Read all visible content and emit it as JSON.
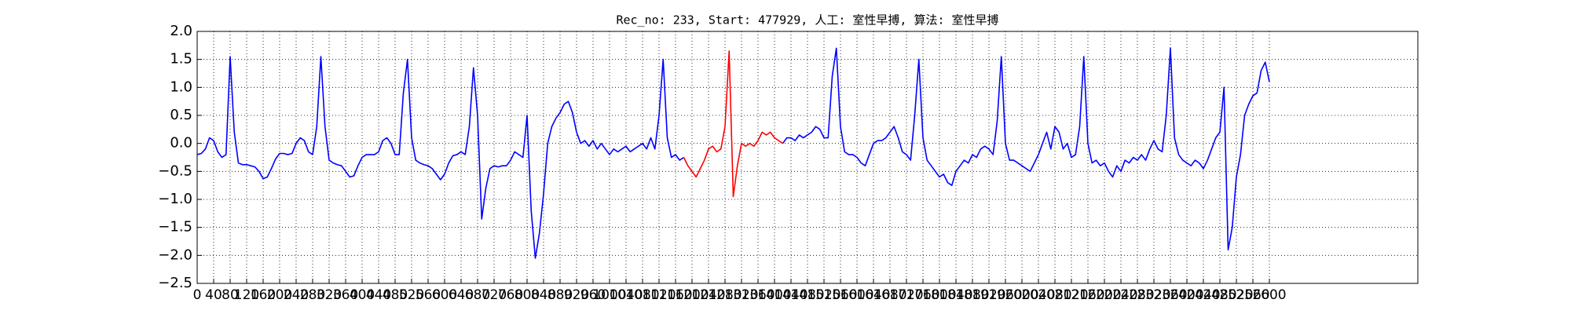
{
  "chart_data": {
    "type": "line",
    "title": "Rec_no: 233, Start: 477929, 人工: 室性早搏, 算法: 室性早搏",
    "xlim": [
      0,
      2960
    ],
    "ylim": [
      -2.5,
      2.0
    ],
    "xticks": [
      0,
      40,
      80,
      120,
      160,
      200,
      240,
      280,
      320,
      360,
      400,
      440,
      480,
      520,
      560,
      600,
      640,
      680,
      720,
      760,
      800,
      840,
      880,
      920,
      960,
      1000,
      1040,
      1080,
      1120,
      1160,
      1200,
      1240,
      1280,
      1320,
      1360,
      1400,
      1440,
      1480,
      1520,
      1560,
      1600,
      1640,
      1680,
      1720,
      1760,
      1800,
      1840,
      1880,
      1920,
      1960,
      2000,
      2040,
      2080,
      2120,
      2160,
      2200,
      2240,
      2280,
      2320,
      2360,
      2400,
      2440,
      2480,
      2520,
      2560,
      2600
    ],
    "yticks": [
      {
        "value": -2.5,
        "label": "−2.5"
      },
      {
        "value": -2.0,
        "label": "−2.0"
      },
      {
        "value": -1.5,
        "label": "−1.5"
      },
      {
        "value": -1.0,
        "label": "−1.0"
      },
      {
        "value": -0.5,
        "label": "−0.5"
      },
      {
        "value": 0,
        "label": "0.0"
      },
      {
        "value": 0.5,
        "label": "0.5"
      },
      {
        "value": 1.0,
        "label": "1.0"
      },
      {
        "value": 1.5,
        "label": "1.5"
      },
      {
        "value": 2.0,
        "label": "2.0"
      }
    ],
    "grid": true,
    "series": [
      {
        "color": "#0000ff",
        "x": [
          0,
          10,
          20,
          30,
          40,
          50,
          60,
          70,
          80,
          90,
          100,
          110,
          120,
          130,
          140,
          150,
          160,
          170,
          180,
          190,
          200,
          210,
          220,
          230,
          240,
          250,
          260,
          270,
          280,
          290,
          300,
          310,
          320,
          330,
          340,
          350,
          360,
          370,
          380,
          390,
          400,
          410,
          420,
          430,
          440,
          450,
          460,
          470,
          480,
          490,
          500,
          510,
          520,
          530,
          540,
          550,
          560,
          570,
          580,
          590,
          600,
          610,
          620,
          630,
          640,
          650,
          660,
          670,
          680,
          690,
          700,
          710,
          720,
          730,
          740,
          750,
          760,
          770,
          780,
          790,
          800,
          810,
          820,
          830,
          840,
          850,
          860,
          870,
          880,
          890,
          900,
          910,
          920,
          930,
          940,
          950,
          960,
          970,
          980,
          990,
          1000,
          1010,
          1020,
          1030,
          1040,
          1050,
          1060,
          1070,
          1080,
          1090,
          1100,
          1110,
          1120,
          1130,
          1140,
          1150,
          1160,
          1170,
          1180,
          1190,
          1200,
          1210,
          1220,
          1230,
          1240,
          1250,
          1260,
          1270,
          1280,
          1290,
          1300,
          1310,
          1320,
          1330,
          1340,
          1350,
          1360,
          1370,
          1380,
          1390,
          1400,
          1410,
          1420,
          1430,
          1440,
          1450,
          1460,
          1470,
          1480,
          1490,
          1500,
          1510,
          1520,
          1530,
          1540,
          1550,
          1560,
          1570,
          1580,
          1590,
          1600,
          1610,
          1620,
          1630,
          1640,
          1650,
          1660,
          1670,
          1680,
          1690,
          1700,
          1710,
          1720,
          1730,
          1740,
          1750,
          1760,
          1770,
          1780,
          1790,
          1800,
          1810,
          1820,
          1830,
          1840,
          1850,
          1860,
          1870,
          1880,
          1890,
          1900,
          1910,
          1920,
          1930,
          1940,
          1950,
          1960,
          1970,
          1980,
          1990,
          2000,
          2010,
          2020,
          2030,
          2040,
          2050,
          2060,
          2070,
          2080,
          2090,
          2100,
          2110,
          2120,
          2130,
          2140,
          2150,
          2160,
          2170,
          2180,
          2190,
          2200,
          2210,
          2220,
          2230,
          2240,
          2250,
          2260,
          2270,
          2280,
          2290,
          2300,
          2310,
          2320,
          2330,
          2340,
          2350,
          2360,
          2370,
          2380,
          2390,
          2400,
          2410,
          2420,
          2430,
          2440,
          2450,
          2460,
          2470,
          2480,
          2490,
          2500,
          2510,
          2520,
          2530,
          2540,
          2550,
          2560,
          2570,
          2580,
          2590,
          2600
        ],
        "values": [
          -0.2,
          -0.18,
          -0.1,
          0.1,
          0.05,
          -0.15,
          -0.25,
          -0.2,
          1.55,
          0.2,
          -0.35,
          -0.38,
          -0.38,
          -0.4,
          -0.42,
          -0.5,
          -0.63,
          -0.6,
          -0.45,
          -0.28,
          -0.18,
          -0.18,
          -0.2,
          -0.18,
          0.0,
          0.1,
          0.05,
          -0.15,
          -0.2,
          0.3,
          1.55,
          0.3,
          -0.3,
          -0.35,
          -0.38,
          -0.4,
          -0.5,
          -0.6,
          -0.58,
          -0.4,
          -0.25,
          -0.2,
          -0.2,
          -0.2,
          -0.15,
          0.05,
          0.1,
          0.0,
          -0.2,
          -0.2,
          0.9,
          1.5,
          0.1,
          -0.3,
          -0.35,
          -0.38,
          -0.4,
          -0.45,
          -0.55,
          -0.65,
          -0.55,
          -0.35,
          -0.22,
          -0.2,
          -0.15,
          -0.2,
          0.3,
          1.35,
          0.5,
          -1.35,
          -0.8,
          -0.45,
          -0.4,
          -0.42,
          -0.4,
          -0.4,
          -0.3,
          -0.15,
          -0.2,
          -0.25,
          0.5,
          -1.2,
          -2.05,
          -1.6,
          -0.9,
          0.0,
          0.3,
          0.45,
          0.55,
          0.7,
          0.75,
          0.55,
          0.2,
          0.0,
          0.05,
          -0.05,
          0.05,
          -0.1,
          0.0,
          -0.1,
          -0.2,
          -0.1,
          -0.15,
          -0.1,
          -0.05,
          -0.15,
          -0.1,
          -0.05,
          0.0,
          -0.1,
          0.1,
          -0.1,
          0.5,
          1.5,
          0.1,
          -0.25,
          -0.2,
          -0.3,
          -0.25,
          null,
          null,
          null,
          null,
          null,
          null,
          null,
          null,
          null,
          null,
          null,
          null,
          null,
          null,
          null,
          null,
          null,
          null,
          null,
          null,
          null,
          null,
          null,
          0.0,
          0.1,
          0.1,
          0.05,
          0.15,
          0.1,
          0.15,
          0.2,
          0.3,
          0.25,
          0.1,
          0.1,
          1.2,
          1.7,
          0.3,
          -0.15,
          -0.2,
          -0.2,
          -0.25,
          -0.35,
          -0.4,
          -0.2,
          0.0,
          0.05,
          0.05,
          0.1,
          0.2,
          0.3,
          0.1,
          -0.15,
          -0.2,
          -0.3,
          0.5,
          1.5,
          0.1,
          -0.3,
          -0.4,
          -0.5,
          -0.6,
          -0.55,
          -0.7,
          -0.75,
          -0.5,
          -0.4,
          -0.3,
          -0.35,
          -0.2,
          -0.25,
          -0.1,
          -0.05,
          -0.1,
          -0.2,
          0.4,
          1.55,
          0.0,
          -0.3,
          -0.3,
          -0.35,
          -0.4,
          -0.45,
          -0.5,
          -0.35,
          -0.2,
          0.0,
          0.2,
          -0.1,
          0.3,
          0.2,
          -0.1,
          0.0,
          -0.25,
          -0.2,
          0.3,
          1.55,
          0.0,
          -0.35,
          -0.3,
          -0.4,
          -0.35,
          -0.5,
          -0.6,
          -0.4,
          -0.5,
          -0.3,
          -0.35,
          -0.25,
          -0.3,
          -0.2,
          -0.3,
          -0.1,
          0.05,
          -0.1,
          -0.15,
          0.5,
          1.7,
          0.1,
          -0.2,
          -0.3,
          -0.35,
          -0.4,
          -0.3,
          -0.35,
          -0.45,
          -0.3,
          -0.1,
          0.1,
          0.2,
          1.0,
          -1.9,
          -1.5,
          -0.6,
          -0.2,
          0.5,
          0.7,
          0.85,
          0.9,
          1.3,
          1.45,
          1.1
        ]
      },
      {
        "color": "#ff0000",
        "x": [
          1180,
          1190,
          1200,
          1210,
          1220,
          1230,
          1240,
          1250,
          1260,
          1270,
          1280,
          1290,
          1300,
          1310,
          1320,
          1330,
          1340,
          1350,
          1360,
          1370,
          1380,
          1390,
          1400,
          1410,
          1420
        ],
        "values": [
          -0.25,
          -0.4,
          -0.5,
          -0.6,
          -0.45,
          -0.3,
          -0.1,
          -0.05,
          -0.15,
          -0.1,
          0.3,
          1.65,
          -0.95,
          -0.4,
          0.0,
          -0.05,
          0.0,
          -0.05,
          0.05,
          0.2,
          0.15,
          0.2,
          0.1,
          0.05,
          0.0
        ]
      }
    ]
  }
}
